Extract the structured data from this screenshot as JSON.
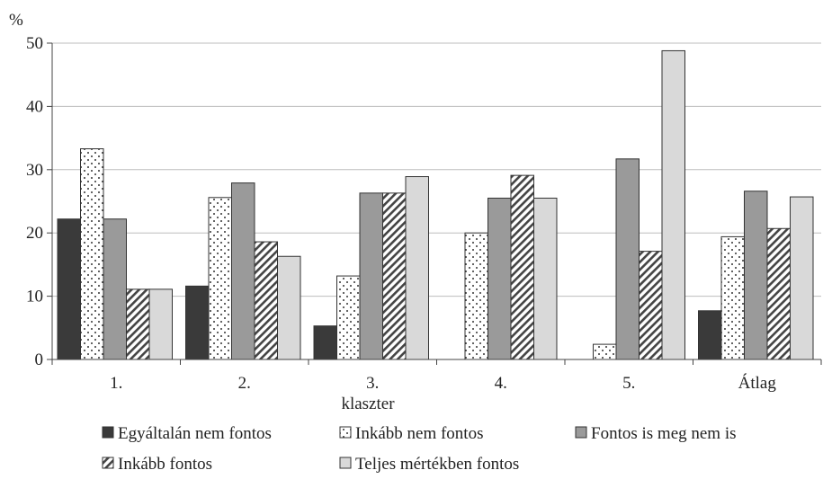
{
  "chart_data": {
    "type": "bar",
    "ylabel": "%",
    "xlabel": "klaszter",
    "ylim": [
      0,
      50
    ],
    "yticks": [
      0,
      10,
      20,
      30,
      40,
      50
    ],
    "grid": true,
    "legend_position": "bottom",
    "categories": [
      "1.",
      "2.",
      "3.",
      "4.",
      "5.",
      "Átlag"
    ],
    "series": [
      {
        "name": "Egyáltalán nem fontos",
        "pattern": "solid-dark",
        "color": "#3a3a3a",
        "values": [
          22.2,
          11.6,
          5.3,
          0,
          0,
          7.7
        ]
      },
      {
        "name": "Inkább nem fontos",
        "pattern": "dots",
        "color": "#ffffff",
        "values": [
          33.3,
          25.6,
          13.2,
          20.0,
          2.4,
          19.4
        ]
      },
      {
        "name": "Fontos is meg nem is",
        "pattern": "solid-mid",
        "color": "#9a9a9a",
        "values": [
          22.2,
          27.9,
          26.3,
          25.5,
          31.7,
          26.6
        ]
      },
      {
        "name": "Inkább fontos",
        "pattern": "diagonal",
        "color": "#ffffff",
        "values": [
          11.1,
          18.6,
          26.3,
          29.1,
          17.1,
          20.7
        ]
      },
      {
        "name": "Teljes mértékben fontos",
        "pattern": "solid-light",
        "color": "#d9d9d9",
        "values": [
          11.1,
          16.3,
          28.9,
          25.5,
          48.8,
          25.7
        ]
      }
    ]
  }
}
